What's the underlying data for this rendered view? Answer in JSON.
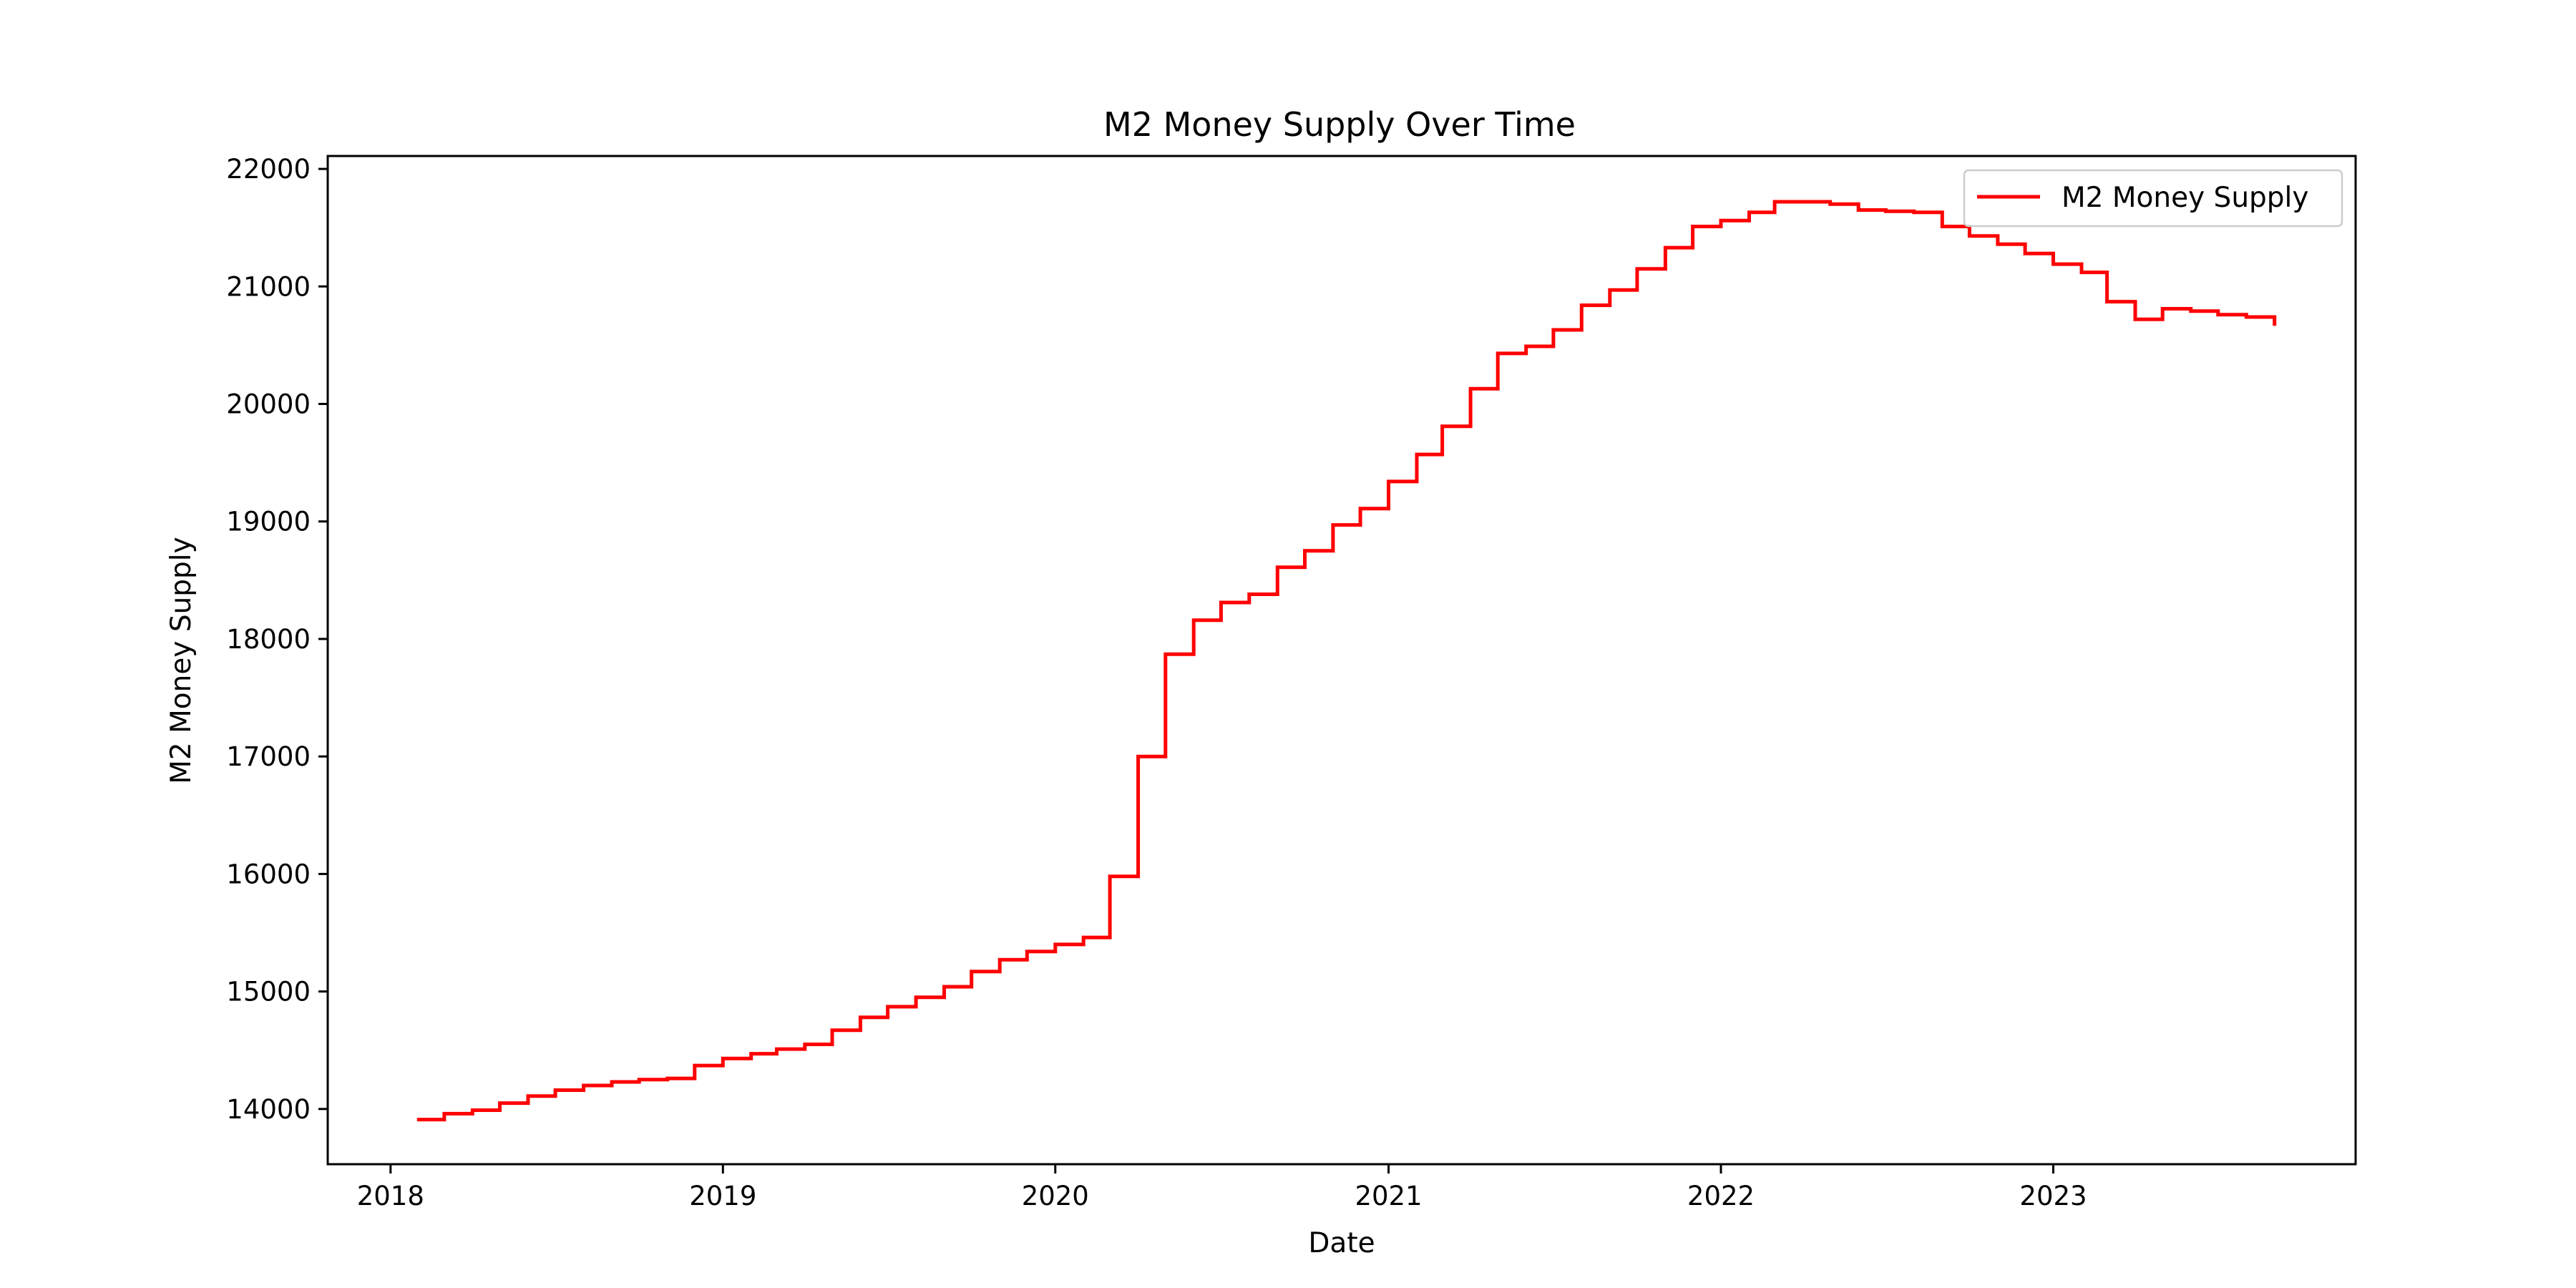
{
  "chart_data": {
    "type": "line",
    "title": "M2 Money Supply Over Time",
    "xlabel": "Date",
    "ylabel": "M2 Money Supply",
    "xlim": [
      "2017-10-24",
      "2023-11-29"
    ],
    "ylim": [
      13530,
      22110
    ],
    "x_ticks": [
      {
        "date": "2018-01-01",
        "label": "2018"
      },
      {
        "date": "2019-01-01",
        "label": "2019"
      },
      {
        "date": "2020-01-01",
        "label": "2020"
      },
      {
        "date": "2021-01-01",
        "label": "2021"
      },
      {
        "date": "2022-01-01",
        "label": "2022"
      },
      {
        "date": "2023-01-01",
        "label": "2023"
      }
    ],
    "y_ticks": [
      {
        "value": 14000,
        "label": "14000"
      },
      {
        "value": 15000,
        "label": "15000"
      },
      {
        "value": 16000,
        "label": "16000"
      },
      {
        "value": 17000,
        "label": "17000"
      },
      {
        "value": 18000,
        "label": "18000"
      },
      {
        "value": 19000,
        "label": "19000"
      },
      {
        "value": 20000,
        "label": "20000"
      },
      {
        "value": 21000,
        "label": "21000"
      },
      {
        "value": 22000,
        "label": "22000"
      }
    ],
    "grid": false,
    "legend_position": "top-right",
    "series": [
      {
        "name": "M2 Money Supply",
        "color": "#ff0000",
        "step": "post",
        "x": [
          "2018-02-01",
          "2018-03-01",
          "2018-04-01",
          "2018-05-01",
          "2018-06-01",
          "2018-07-01",
          "2018-08-01",
          "2018-09-01",
          "2018-10-01",
          "2018-11-01",
          "2018-12-01",
          "2019-01-01",
          "2019-02-01",
          "2019-03-01",
          "2019-04-01",
          "2019-05-01",
          "2019-06-01",
          "2019-07-01",
          "2019-08-01",
          "2019-09-01",
          "2019-10-01",
          "2019-11-01",
          "2019-12-01",
          "2020-01-01",
          "2020-02-01",
          "2020-03-01",
          "2020-04-01",
          "2020-05-01",
          "2020-06-01",
          "2020-07-01",
          "2020-08-01",
          "2020-09-01",
          "2020-10-01",
          "2020-11-01",
          "2020-12-01",
          "2021-01-01",
          "2021-02-01",
          "2021-03-01",
          "2021-04-01",
          "2021-05-01",
          "2021-06-01",
          "2021-07-01",
          "2021-08-01",
          "2021-09-01",
          "2021-10-01",
          "2021-11-01",
          "2021-12-01",
          "2022-01-01",
          "2022-02-01",
          "2022-03-01",
          "2022-04-01",
          "2022-05-01",
          "2022-06-01",
          "2022-07-01",
          "2022-08-01",
          "2022-09-01",
          "2022-10-01",
          "2022-11-01",
          "2022-12-01",
          "2023-01-01",
          "2023-02-01",
          "2023-03-01",
          "2023-04-01",
          "2023-05-01",
          "2023-06-01",
          "2023-07-01",
          "2023-08-01",
          "2023-09-01"
        ],
        "values": [
          13910,
          13960,
          13990,
          14050,
          14110,
          14160,
          14200,
          14230,
          14250,
          14260,
          14370,
          14430,
          14470,
          14510,
          14550,
          14670,
          14780,
          14870,
          14950,
          15040,
          15170,
          15270,
          15340,
          15400,
          15460,
          15980,
          17000,
          17870,
          18160,
          18310,
          18380,
          18610,
          18750,
          18970,
          19110,
          19340,
          19570,
          19810,
          20130,
          20430,
          20490,
          20630,
          20840,
          20970,
          21150,
          21330,
          21510,
          21560,
          21630,
          21720,
          21720,
          21700,
          21650,
          21640,
          21630,
          21510,
          21430,
          21360,
          21280,
          21190,
          21120,
          20870,
          20720,
          20810,
          20790,
          20760,
          20740,
          20680
        ]
      }
    ]
  }
}
